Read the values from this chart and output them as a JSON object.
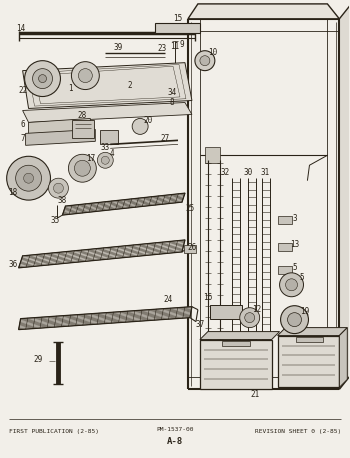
{
  "footer_left": "FIRST PUBLICATION (2-85)",
  "footer_center": "PM-1537-00",
  "footer_center2": "A-8",
  "footer_right": "REVISION SHEET 0 (2-85)",
  "bg_color": "#f2efe9",
  "fig_width": 3.5,
  "fig_height": 4.58,
  "dpi": 100,
  "line_color": "#2a2318"
}
